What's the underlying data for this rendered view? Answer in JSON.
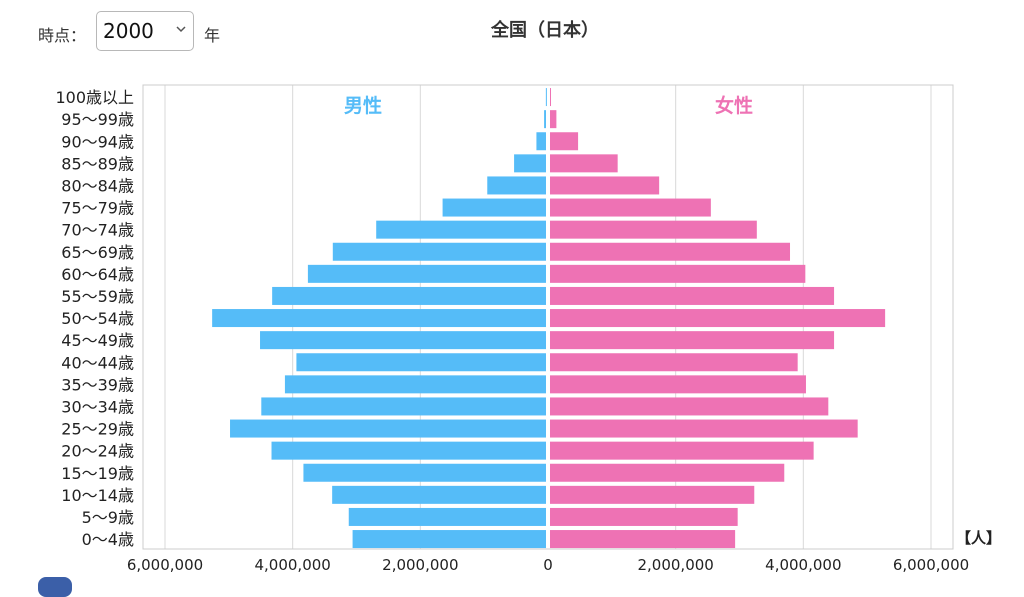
{
  "controls": {
    "time_label": "時点：",
    "year_value": "2000",
    "year_suffix": "年"
  },
  "chart_data": {
    "type": "bar",
    "title": "全国（日本）",
    "orientation": "horizontal",
    "layout": "population-pyramid",
    "unit_label": "【人】",
    "categories": [
      "100歳以上",
      "95〜99歳",
      "90〜94歳",
      "85〜89歳",
      "80〜84歳",
      "75〜79歳",
      "70〜74歳",
      "65〜69歳",
      "60〜64歳",
      "55〜59歳",
      "50〜54歳",
      "45〜49歳",
      "40〜44歳",
      "35〜39歳",
      "30〜34歳",
      "25〜29歳",
      "20〜24歳",
      "15〜19歳",
      "10〜14歳",
      "5〜9歳",
      "0〜4歳"
    ],
    "series": [
      {
        "name": "男性",
        "color": "#55bcf8",
        "values": [
          2000,
          30000,
          150000,
          500000,
          920000,
          1620000,
          2660000,
          3340000,
          3730000,
          4290000,
          5230000,
          4480000,
          3910000,
          4090000,
          4460000,
          4950000,
          4300000,
          3800000,
          3350000,
          3090000,
          3030000
        ]
      },
      {
        "name": "女性",
        "color": "#ee72b4",
        "values": [
          12000,
          100000,
          440000,
          1060000,
          1710000,
          2520000,
          3240000,
          3760000,
          4000000,
          4450000,
          5250000,
          4450000,
          3880000,
          4010000,
          4360000,
          4820000,
          4130000,
          3670000,
          3200000,
          2940000,
          2900000
        ]
      }
    ],
    "xlim": [
      -6000000,
      6000000
    ],
    "x_ticks": [
      -6000000,
      -4000000,
      -2000000,
      0,
      2000000,
      4000000,
      6000000
    ],
    "x_tick_labels": [
      "6,000,000",
      "4,000,000",
      "2,000,000",
      "0",
      "2,000,000",
      "4,000,000",
      "6,000,000"
    ],
    "grid": true,
    "legend": "inside-top"
  }
}
